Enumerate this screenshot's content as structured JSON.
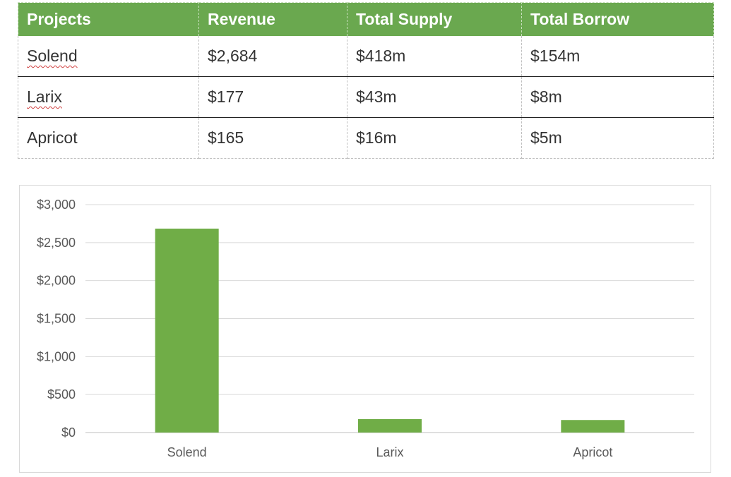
{
  "table": {
    "headers": [
      "Projects",
      "Revenue",
      "Total Supply",
      "Total Borrow"
    ],
    "rows": [
      [
        "Solend",
        "$2,684",
        "$418m",
        "$154m"
      ],
      [
        "Larix",
        "$177",
        "$43m",
        "$8m"
      ],
      [
        "Apricot",
        "$165",
        "$16m",
        "$5m"
      ]
    ]
  },
  "colors": {
    "header_bg": "#6aa84f",
    "bar": "#70ad47",
    "gridline": "#d9d9d9"
  },
  "chart_data": {
    "type": "bar",
    "categories": [
      "Solend",
      "Larix",
      "Apricot"
    ],
    "values": [
      2684,
      177,
      165
    ],
    "ylim": [
      0,
      3000
    ],
    "yticks": [
      0,
      500,
      1000,
      1500,
      2000,
      2500,
      3000
    ],
    "ytick_labels": [
      "$0",
      "$500",
      "$1,000",
      "$1,500",
      "$2,000",
      "$2,500",
      "$3,000"
    ],
    "title": "",
    "xlabel": "",
    "ylabel": "",
    "grid": true,
    "legend": "none"
  }
}
